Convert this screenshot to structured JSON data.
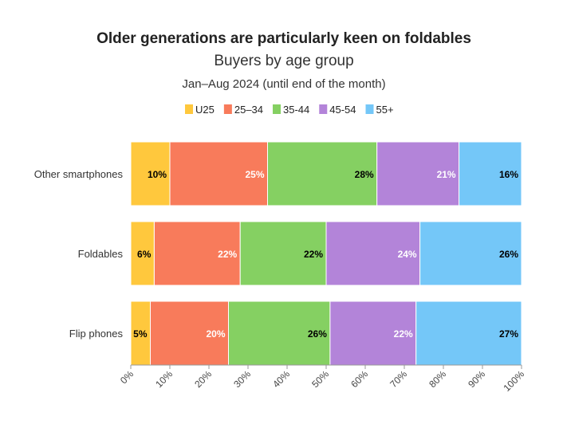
{
  "chart_data": {
    "type": "bar",
    "orientation": "horizontal",
    "stacked": "percent",
    "title": "Older generations are particularly keen on foldables",
    "subtitle": "Buyers by age group",
    "period": "Jan–Aug 2024 (until end of the month)",
    "categories": [
      "Other smartphones",
      "Foldables",
      "Flip phones"
    ],
    "series": [
      {
        "name": "U25",
        "color": "#FFC83D",
        "label_color": "#000000",
        "values": [
          10,
          6,
          5
        ]
      },
      {
        "name": "25–34",
        "color": "#F87B5B",
        "label_color": "#ffffff",
        "values": [
          25,
          22,
          20
        ]
      },
      {
        "name": "35-44",
        "color": "#85D062",
        "label_color": "#000000",
        "values": [
          28,
          22,
          26
        ]
      },
      {
        "name": "45-54",
        "color": "#B384D9",
        "label_color": "#ffffff",
        "values": [
          21,
          24,
          22
        ]
      },
      {
        "name": "55+",
        "color": "#74C7F8",
        "label_color": "#000000",
        "values": [
          16,
          26,
          27
        ]
      }
    ],
    "data_labels": [
      [
        "10%",
        "25%",
        "28%",
        "21%",
        "16%"
      ],
      [
        "6%",
        "22%",
        "22%",
        "24%",
        "26%"
      ],
      [
        "5%",
        "20%",
        "26%",
        "22%",
        "27%"
      ]
    ],
    "xlim": [
      0,
      100
    ],
    "x_ticks": [
      "0%",
      "10%",
      "20%",
      "30%",
      "40%",
      "50%",
      "60%",
      "70%",
      "80%",
      "90%",
      "100%"
    ],
    "legend_position": "top-center",
    "grid": false
  }
}
